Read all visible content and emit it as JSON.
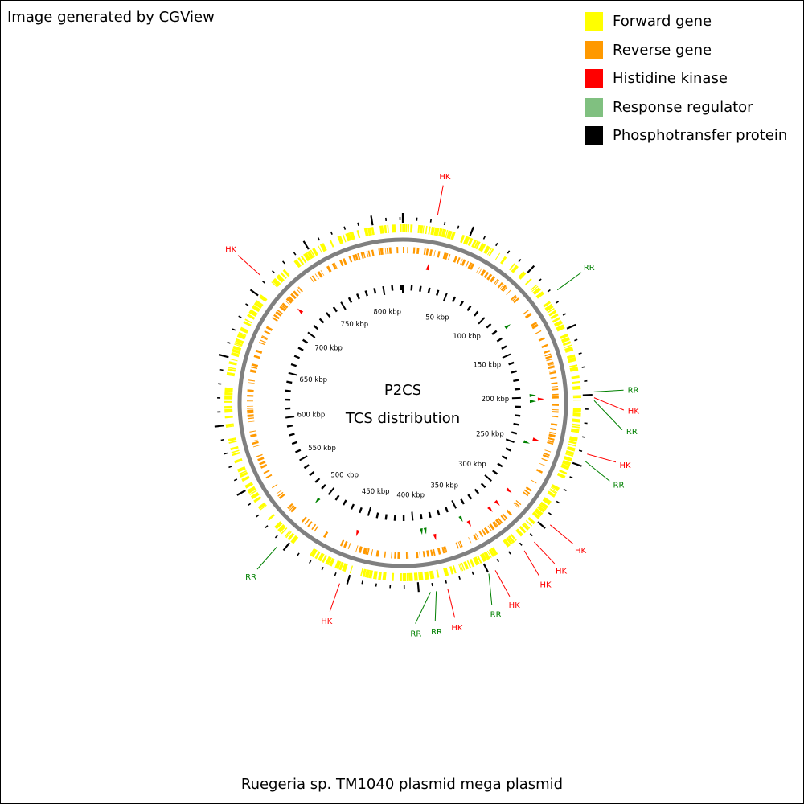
{
  "credit": "Image generated by CGView",
  "title_line1": "P2CS",
  "title_line2": "TCS distribution",
  "caption": "Ruegeria sp. TM1040 plasmid mega plasmid",
  "legend": [
    {
      "label": "Forward gene",
      "color": "#ffff00"
    },
    {
      "label": "Reverse gene",
      "color": "#ff9900"
    },
    {
      "label": "Histidine kinase",
      "color": "#ff0000"
    },
    {
      "label": "Response regulator",
      "color": "#80c080"
    },
    {
      "label": "Phosphotransfer protein",
      "color": "#000000"
    }
  ],
  "colors": {
    "hk": "#ff0000",
    "rr": "#008000",
    "backbone": "#808080",
    "forward": "#ffff00",
    "reverse": "#ff9900",
    "tick": "#000000"
  },
  "genome_length_kbp": 822,
  "tick_labels": [
    "50 kbp",
    "100 kbp",
    "150 kbp",
    "200 kbp",
    "250 kbp",
    "300 kbp",
    "350 kbp",
    "400 kbp",
    "450 kbp",
    "500 kbp",
    "550 kbp",
    "600 kbp",
    "650 kbp",
    "700 kbp",
    "750 kbp",
    "800 kbp"
  ],
  "features": [
    {
      "type": "HK",
      "label": "HK",
      "position_kbp": 24
    },
    {
      "type": "RR",
      "label": "RR",
      "position_kbp": 123
    },
    {
      "type": "RR",
      "label": "RR",
      "position_kbp": 198
    },
    {
      "type": "HK",
      "label": "HK",
      "position_kbp": 202
    },
    {
      "type": "RR",
      "label": "RR",
      "position_kbp": 204
    },
    {
      "type": "HK",
      "label": "HK",
      "position_kbp": 241
    },
    {
      "type": "RR",
      "label": "RR",
      "position_kbp": 246
    },
    {
      "type": "HK",
      "label": "HK",
      "position_kbp": 296
    },
    {
      "type": "HK",
      "label": "HK",
      "position_kbp": 312
    },
    {
      "type": "HK",
      "label": "HK",
      "position_kbp": 321
    },
    {
      "type": "HK",
      "label": "HK",
      "position_kbp": 345
    },
    {
      "type": "RR",
      "label": "RR",
      "position_kbp": 350
    },
    {
      "type": "HK",
      "label": "HK",
      "position_kbp": 380
    },
    {
      "type": "RR",
      "label": "RR",
      "position_kbp": 388
    },
    {
      "type": "RR",
      "label": "RR",
      "position_kbp": 392
    },
    {
      "type": "HK",
      "label": "HK",
      "position_kbp": 455
    },
    {
      "type": "RR",
      "label": "RR",
      "position_kbp": 505
    },
    {
      "type": "HK",
      "label": "HK",
      "position_kbp": 712
    }
  ]
}
